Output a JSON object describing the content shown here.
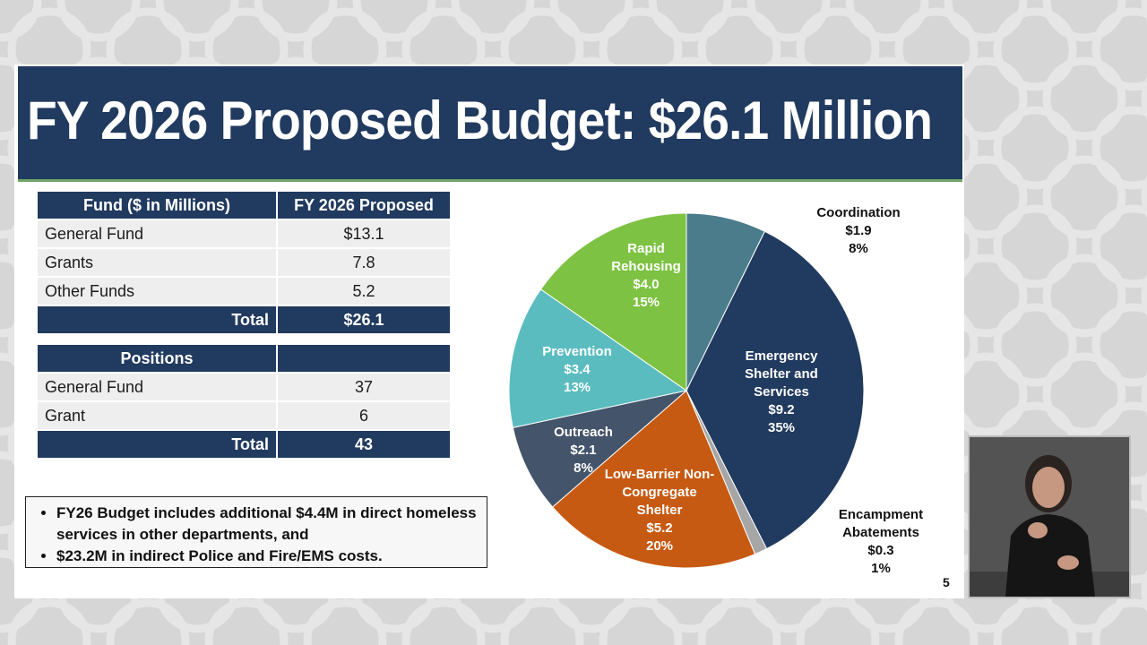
{
  "slide": {
    "title": "FY 2026 Proposed Budget: $26.1 Million",
    "page_number": "5"
  },
  "funds_table": {
    "headers": [
      "Fund ($ in Millions)",
      "FY 2026 Proposed"
    ],
    "rows": [
      {
        "label": "General Fund",
        "value": "$13.1"
      },
      {
        "label": "Grants",
        "value": "7.8"
      },
      {
        "label": "Other Funds",
        "value": "5.2"
      }
    ],
    "total": {
      "label": "Total",
      "value": "$26.1"
    }
  },
  "positions_table": {
    "headers": [
      "Positions",
      ""
    ],
    "rows": [
      {
        "label": "General Fund",
        "value": "37"
      },
      {
        "label": "Grant",
        "value": "6"
      }
    ],
    "total": {
      "label": "Total",
      "value": "43"
    }
  },
  "notes": [
    "FY26 Budget includes additional $4.4M in direct homeless services in other departments, and",
    "$23.2M in indirect Police and Fire/EMS costs."
  ],
  "chart_data": {
    "type": "pie",
    "slices": [
      {
        "lines": [
          "Coordination",
          "$1.9",
          "8%"
        ],
        "value": 1.9,
        "color": "#4a7c8c",
        "label_color": "#111111"
      },
      {
        "lines": [
          "Emergency",
          "Shelter and",
          "Services",
          "$9.2",
          "35%"
        ],
        "value": 9.2,
        "color": "#213a5f",
        "label_color": "#ffffff"
      },
      {
        "lines": [
          "Encampment",
          "Abatements",
          "$0.3",
          "1%"
        ],
        "value": 0.3,
        "color": "#a6a6a6",
        "label_color": "#111111"
      },
      {
        "lines": [
          "Low-Barrier Non-",
          "Congregate",
          "Shelter",
          "$5.2",
          "20%"
        ],
        "value": 5.2,
        "color": "#c75a12",
        "label_color": "#ffffff"
      },
      {
        "lines": [
          "Outreach",
          "$2.1",
          "8%"
        ],
        "value": 2.1,
        "color": "#44546a",
        "label_color": "#ffffff"
      },
      {
        "lines": [
          "Prevention",
          "$3.4",
          "13%"
        ],
        "value": 3.4,
        "color": "#5bbcc0",
        "label_color": "#ffffff"
      },
      {
        "lines": [
          "Rapid",
          "Rehousing",
          "$4.0",
          "15%"
        ],
        "value": 4.0,
        "color": "#7dc242",
        "label_color": "#ffffff"
      }
    ]
  },
  "video_overlay": {
    "icon": "sign-language-interpreter"
  }
}
